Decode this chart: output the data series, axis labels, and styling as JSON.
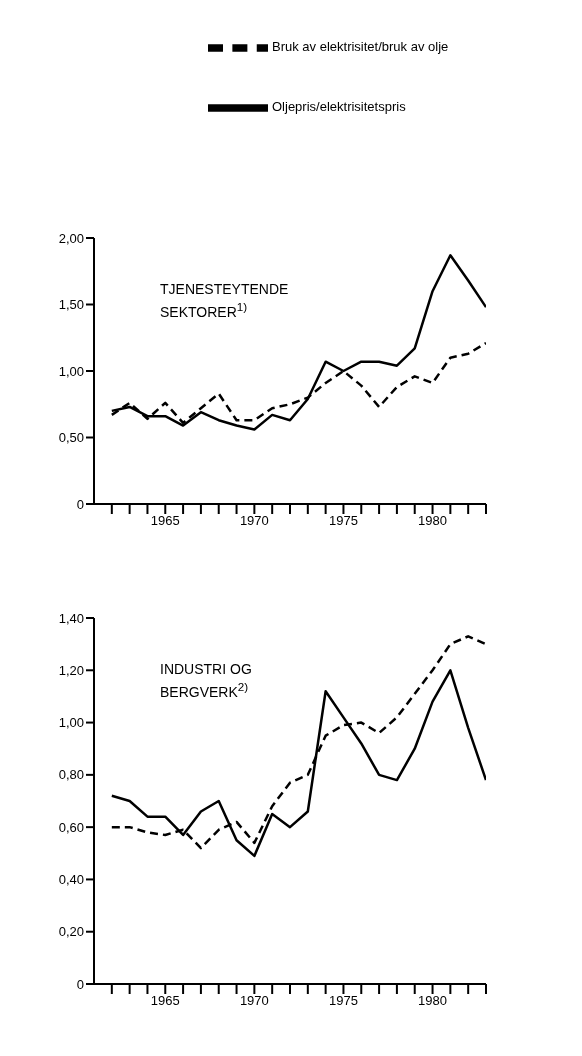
{
  "chart_data": [
    {
      "type": "line",
      "title": "TJENESTEYTENDE SEKTORER$^{1)}$",
      "legend": "top right",
      "grid": false,
      "x": [
        1962,
        1963,
        1964,
        1965,
        1966,
        1967,
        1968,
        1969,
        1970,
        1971,
        1972,
        1973,
        1974,
        1975,
        1976,
        1977,
        1978,
        1979,
        1980,
        1981,
        1982,
        1983
      ],
      "xlim": [
        1961,
        1983
      ],
      "xticks": [
        {
          "value": 1962,
          "label": null
        },
        {
          "value": 1963,
          "label": null
        },
        {
          "value": 1964,
          "label": null
        },
        1965,
        {
          "value": 1966,
          "label": null
        },
        {
          "value": 1967,
          "label": null
        },
        {
          "value": 1968,
          "label": null
        },
        {
          "value": 1969,
          "label": null
        },
        1970,
        {
          "value": 1971,
          "label": null
        },
        {
          "value": 1972,
          "label": null
        },
        {
          "value": 1973,
          "label": null
        },
        {
          "value": 1974,
          "label": null
        },
        1975,
        {
          "value": 1976,
          "label": null
        },
        {
          "value": 1977,
          "label": null
        },
        {
          "value": 1978,
          "label": null
        },
        {
          "value": 1979,
          "label": null
        },
        1980,
        {
          "value": 1981,
          "label": null
        },
        {
          "value": 1982,
          "label": null
        },
        {
          "value": 1983,
          "label": null
        }
      ],
      "ylim": [
        0,
        2
      ],
      "yticks": [
        0,
        {
          "value": 0.5,
          "label": "0,50"
        },
        {
          "value": 1,
          "label": "1,00"
        },
        {
          "value": 1.5,
          "label": "1,50"
        },
        {
          "value": 2,
          "label": "2,00"
        }
      ],
      "marker": "none",
      "series": [
        {
          "name": "Oljepris/elektrisitetspris",
          "color": "#000000",
          "line_style": "solid",
          "values": [
            0.7,
            0.73,
            0.66,
            0.66,
            0.59,
            0.69,
            0.63,
            0.59,
            0.56,
            0.67,
            0.63,
            0.79,
            1.07,
            1.0,
            1.07,
            1.07,
            1.04,
            1.17,
            1.6,
            1.87,
            1.68,
            1.48
          ]
        },
        {
          "name": "Bruk av elektrisitet/bruk av olje",
          "color": "#000000",
          "line_style": "dashed",
          "values": [
            0.67,
            0.76,
            0.64,
            0.76,
            0.61,
            0.72,
            0.83,
            0.63,
            0.63,
            0.72,
            0.75,
            0.8,
            0.91,
            1.0,
            0.89,
            0.73,
            0.88,
            0.96,
            0.91,
            1.1,
            1.13,
            1.21
          ]
        }
      ]
    },
    {
      "type": "line",
      "title": "INDUSTRI OG BERGVERK$^{2)}$",
      "grid": false,
      "x": [
        1962,
        1963,
        1964,
        1965,
        1966,
        1967,
        1968,
        1969,
        1970,
        1971,
        1972,
        1973,
        1974,
        1975,
        1976,
        1977,
        1978,
        1979,
        1980,
        1981,
        1982,
        1983
      ],
      "xlim": [
        1961,
        1983
      ],
      "xticks": [
        {
          "value": 1962,
          "label": null
        },
        {
          "value": 1963,
          "label": null
        },
        {
          "value": 1964,
          "label": null
        },
        1965,
        {
          "value": 1966,
          "label": null
        },
        {
          "value": 1967,
          "label": null
        },
        {
          "value": 1968,
          "label": null
        },
        {
          "value": 1969,
          "label": null
        },
        1970,
        {
          "value": 1971,
          "label": null
        },
        {
          "value": 1972,
          "label": null
        },
        {
          "value": 1973,
          "label": null
        },
        {
          "value": 1974,
          "label": null
        },
        1975,
        {
          "value": 1976,
          "label": null
        },
        {
          "value": 1977,
          "label": null
        },
        {
          "value": 1978,
          "label": null
        },
        {
          "value": 1979,
          "label": null
        },
        1980,
        {
          "value": 1981,
          "label": null
        },
        {
          "value": 1982,
          "label": null
        },
        {
          "value": 1983,
          "label": null
        }
      ],
      "ylim": [
        0,
        1.4
      ],
      "yticks": [
        0,
        {
          "value": 0.2,
          "label": "0,20"
        },
        {
          "value": 0.4,
          "label": "0,40"
        },
        {
          "value": 0.6,
          "label": "0,60"
        },
        {
          "value": 0.8,
          "label": "0,80"
        },
        {
          "value": 1,
          "label": "1,00"
        },
        {
          "value": 1.2,
          "label": "1,20"
        },
        {
          "value": 1.4,
          "label": "1,40"
        }
      ],
      "marker": "none",
      "series": [
        {
          "color": "#000000",
          "line_style": "solid",
          "values": [
            0.72,
            0.7,
            0.64,
            0.64,
            0.57,
            0.66,
            0.7,
            0.55,
            0.49,
            0.65,
            0.6,
            0.66,
            1.12,
            1.02,
            0.92,
            0.8,
            0.78,
            0.9,
            1.08,
            1.2,
            0.98,
            0.78
          ]
        },
        {
          "color": "#000000",
          "line_style": "dashed",
          "values": [
            0.6,
            0.6,
            0.58,
            0.57,
            0.59,
            0.52,
            0.59,
            0.62,
            0.54,
            0.68,
            0.77,
            0.8,
            0.95,
            0.99,
            1.0,
            0.96,
            1.02,
            1.11,
            1.2,
            1.3,
            1.33,
            1.3
          ]
        }
      ]
    }
  ]
}
